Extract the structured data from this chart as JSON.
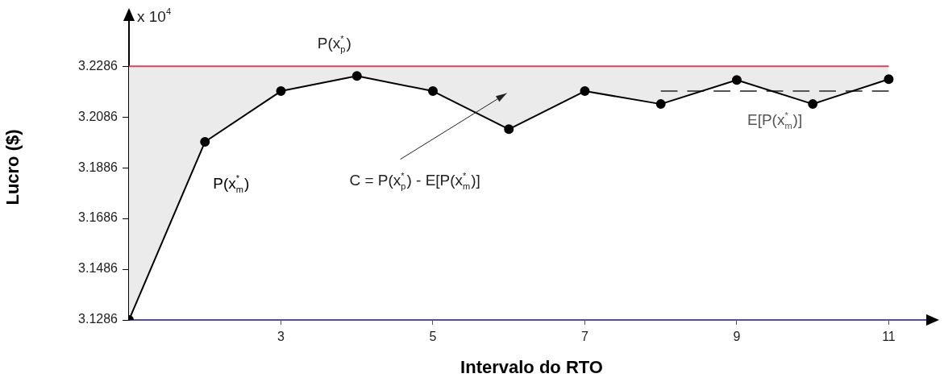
{
  "chart_data": {
    "type": "line",
    "xlabel": "Intervalo do RTO",
    "ylabel": "Lucro ($)",
    "xlim": [
      1,
      11.6
    ],
    "xticks": [
      3,
      5,
      7,
      9,
      11
    ],
    "ylim": [
      3.1286,
      3.249
    ],
    "yticks": [
      3.1286,
      3.1486,
      3.1686,
      3.1886,
      3.2086,
      3.2286
    ],
    "series": [
      {
        "name": "P(x$^{*}$$_{m}$)",
        "color": "#000000",
        "x": [
          1,
          2,
          3,
          4,
          5,
          6,
          7,
          8,
          9,
          10,
          11
        ],
        "values": [
          3.1286,
          3.1988,
          3.2188,
          3.2248,
          3.2188,
          3.2038,
          3.2188,
          3.2137,
          3.2232,
          3.2137,
          3.2235
        ],
        "lower": [
          3.1286,
          3.1988,
          3.2188,
          3.2248,
          3.2188,
          3.2038,
          3.2188,
          3.2137,
          3.2232,
          3.2137,
          3.2235
        ],
        "upper": [
          3.2286,
          3.2286,
          3.2286,
          3.2286,
          3.2286,
          3.2286,
          3.2286,
          3.2286,
          3.2286,
          3.2286,
          3.2286
        ]
      },
      {
        "name": "E[P(x$^{*}$$_{m}$)]",
        "color": "#555555",
        "line_style": "dashed",
        "marker": "none",
        "x": [
          8,
          11
        ],
        "values": [
          3.2188,
          3.2188
        ]
      }
    ],
    "ref_lines": [
      {
        "axis": "y",
        "value": 3.2286,
        "label": "P(x$^{*}$$_{p}$)",
        "color": "#d9455f"
      }
    ],
    "annotations": [
      "x 10$^{4}$",
      "C = P(x$^{*}$$_{p}$) - E[P(x$^{*}$$_{m}$)]"
    ],
    "marker": "circle",
    "grid": false,
    "legend": false
  }
}
